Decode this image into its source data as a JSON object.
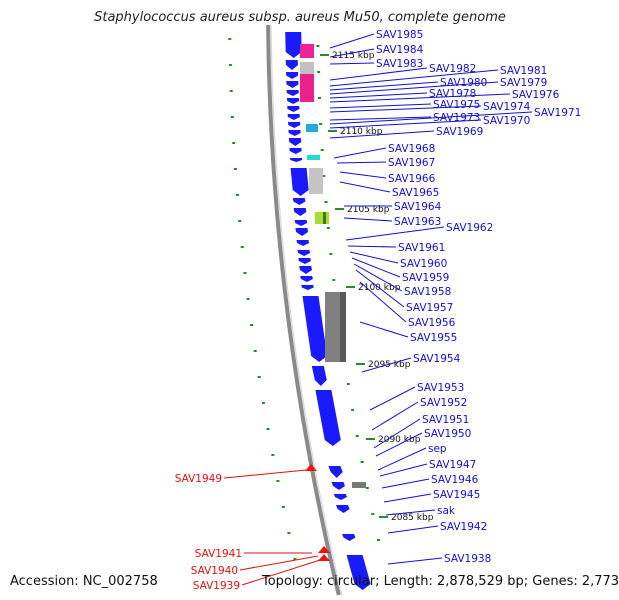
{
  "title": "Staphylococcus aureus subsp. aureus Mu50, complete genome",
  "accession": "Accession: NC_002758",
  "summary": "Topology: circular; Length: 2,878,529 bp; Genes: 2,773",
  "colors": {
    "forward_gene": "#1a1aff",
    "reverse_gene": "#ee1111",
    "label_forward": "#1111cc",
    "label_reverse": "#dd1111",
    "backbone": "#8a8a8a",
    "tick": "#2a8a2a"
  },
  "ticks": [
    {
      "label": "2115 kbp"
    },
    {
      "label": "2110 kbp"
    },
    {
      "label": "2105 kbp"
    },
    {
      "label": "2100 kbp"
    },
    {
      "label": "2095 kbp"
    },
    {
      "label": "2090 kbp"
    },
    {
      "label": "2085 kbp"
    }
  ],
  "right_labels": [
    "SAV1985",
    "SAV1984",
    "SAV1983",
    "SAV1982",
    "SAV1981",
    "SAV1980",
    "SAV1979",
    "SAV1978",
    "SAV1976",
    "SAV1975",
    "SAV1974",
    "SAV1973",
    "SAV1971",
    "SAV1970",
    "SAV1969",
    "SAV1968",
    "SAV1967",
    "SAV1966",
    "SAV1965",
    "SAV1964",
    "SAV1963",
    "SAV1962",
    "SAV1961",
    "SAV1960",
    "SAV1959",
    "SAV1958",
    "SAV1957",
    "SAV1956",
    "SAV1955",
    "SAV1954",
    "SAV1953",
    "SAV1952",
    "SAV1951",
    "SAV1950",
    "sep",
    "SAV1947",
    "SAV1946",
    "SAV1945",
    "sak",
    "SAV1942",
    "SAV1938"
  ],
  "left_labels": [
    "SAV1949",
    "SAV1941",
    "SAV1940",
    "SAV1939"
  ]
}
